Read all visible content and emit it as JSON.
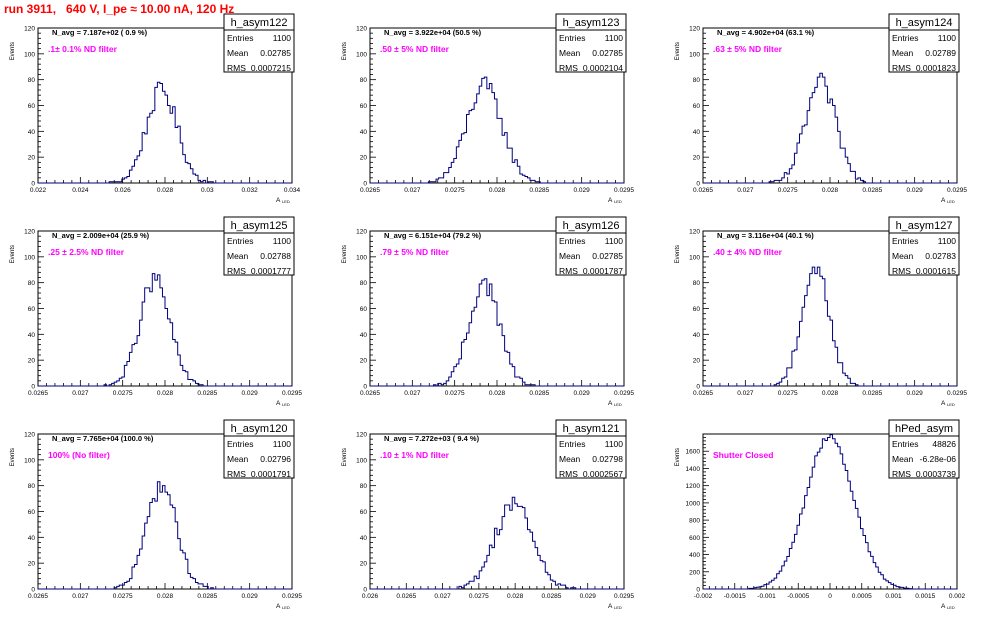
{
  "page": {
    "title": "run 3911,   640 V, I_pe ≈ 10.00 nA, 120 Hz"
  },
  "colors": {
    "histogram": "#00007f",
    "annotation": "#ff00ff",
    "title": "#ff0000",
    "frame": "#000000"
  },
  "chart_data": [
    {
      "type": "bar",
      "name": "h_asym122",
      "avg_label": "N_avg = 7.187e+02 ( 0.9 %)",
      "filter_label": ".1± 0.1% ND filter",
      "stats": {
        "entries_label": "Entries",
        "entries": "1100",
        "mean_label": "Mean",
        "mean": "0.02785",
        "rms_label": "RMS",
        "rms": "0.0007215"
      },
      "ylabel": "Events",
      "xlabel": "A",
      "xlabel_sub": "LED",
      "xlim": [
        0.022,
        0.034
      ],
      "ylim": [
        0,
        120
      ],
      "xticks": [
        0.022,
        0.024,
        0.026,
        0.028,
        0.03,
        0.032,
        0.034
      ],
      "xtick_labels": [
        "0.022",
        "0.024",
        "0.026",
        "0.028",
        "0.03",
        "0.032",
        "0.034"
      ],
      "yticks": [
        0,
        20,
        40,
        60,
        80,
        100,
        120
      ],
      "ytick_labels": [
        "0",
        "20",
        "40",
        "60",
        "80",
        "100",
        "120"
      ],
      "mean": 0.02785,
      "sigma": 0.000722,
      "peak": 72
    },
    {
      "type": "bar",
      "name": "h_asym123",
      "avg_label": "N_avg = 3.922e+04 (50.5 %)",
      "filter_label": ".50 ± 5% ND filter",
      "stats": {
        "entries_label": "Entries",
        "entries": "1100",
        "mean_label": "Mean",
        "mean": "0.02785",
        "rms_label": "RMS",
        "rms": "0.0002104"
      },
      "ylabel": "Events",
      "xlabel": "A",
      "xlabel_sub": "LED",
      "xlim": [
        0.0265,
        0.0295
      ],
      "ylim": [
        0,
        120
      ],
      "xticks": [
        0.0265,
        0.027,
        0.0275,
        0.028,
        0.0285,
        0.029,
        0.0295
      ],
      "xtick_labels": [
        "0.0265",
        "0.027",
        "0.0275",
        "0.028",
        "0.0285",
        "0.029",
        "0.0295"
      ],
      "yticks": [
        0,
        20,
        40,
        60,
        80,
        100,
        120
      ],
      "ytick_labels": [
        "0",
        "20",
        "40",
        "60",
        "80",
        "100",
        "120"
      ],
      "mean": 0.02785,
      "sigma": 0.00021,
      "peak": 75
    },
    {
      "type": "bar",
      "name": "h_asym124",
      "avg_label": "N_avg = 4.902e+04 (63.1 %)",
      "filter_label": ".63 ± 5% ND filter",
      "stats": {
        "entries_label": "Entries",
        "entries": "1100",
        "mean_label": "Mean",
        "mean": "0.02789",
        "rms_label": "RMS",
        "rms": "0.0001823"
      },
      "ylabel": "Events",
      "xlabel": "A",
      "xlabel_sub": "LED",
      "xlim": [
        0.0265,
        0.0295
      ],
      "ylim": [
        0,
        120
      ],
      "xticks": [
        0.0265,
        0.027,
        0.0275,
        0.028,
        0.0285,
        0.029,
        0.0295
      ],
      "xtick_labels": [
        "0.0265",
        "0.027",
        "0.0275",
        "0.028",
        "0.0285",
        "0.029",
        "0.0295"
      ],
      "yticks": [
        0,
        20,
        40,
        60,
        80,
        100,
        120
      ],
      "ytick_labels": [
        "0",
        "20",
        "40",
        "60",
        "80",
        "100",
        "120"
      ],
      "mean": 0.02789,
      "sigma": 0.000182,
      "peak": 77
    },
    {
      "type": "bar",
      "name": "h_asym125",
      "avg_label": "N_avg = 2.009e+04 (25.9 %)",
      "filter_label": ".25 ± 2.5% ND filter",
      "stats": {
        "entries_label": "Entries",
        "entries": "1100",
        "mean_label": "Mean",
        "mean": "0.02788",
        "rms_label": "RMS",
        "rms": "0.0001777"
      },
      "ylabel": "Events",
      "xlabel": "A",
      "xlabel_sub": "LED",
      "xlim": [
        0.0265,
        0.0295
      ],
      "ylim": [
        0,
        120
      ],
      "xticks": [
        0.0265,
        0.027,
        0.0275,
        0.028,
        0.0285,
        0.029,
        0.0295
      ],
      "xtick_labels": [
        "0.0265",
        "0.027",
        "0.0275",
        "0.028",
        "0.0285",
        "0.029",
        "0.0295"
      ],
      "yticks": [
        0,
        20,
        40,
        60,
        80,
        100,
        120
      ],
      "ytick_labels": [
        "0",
        "20",
        "40",
        "60",
        "80",
        "100",
        "120"
      ],
      "mean": 0.02788,
      "sigma": 0.000178,
      "peak": 82
    },
    {
      "type": "bar",
      "name": "h_asym126",
      "avg_label": "N_avg = 6.151e+04 (79.2 %)",
      "filter_label": ".79 ± 5% ND filter",
      "stats": {
        "entries_label": "Entries",
        "entries": "1100",
        "mean_label": "Mean",
        "mean": "0.02785",
        "rms_label": "RMS",
        "rms": "0.0001787"
      },
      "ylabel": "Events",
      "xlabel": "A",
      "xlabel_sub": "LED",
      "xlim": [
        0.0265,
        0.0295
      ],
      "ylim": [
        0,
        120
      ],
      "xticks": [
        0.0265,
        0.027,
        0.0275,
        0.028,
        0.0285,
        0.029,
        0.0295
      ],
      "xtick_labels": [
        "0.0265",
        "0.027",
        "0.0275",
        "0.028",
        "0.0285",
        "0.029",
        "0.0295"
      ],
      "yticks": [
        0,
        20,
        40,
        60,
        80,
        100,
        120
      ],
      "ytick_labels": [
        "0",
        "20",
        "40",
        "60",
        "80",
        "100",
        "120"
      ],
      "mean": 0.02785,
      "sigma": 0.000179,
      "peak": 80
    },
    {
      "type": "bar",
      "name": "h_asym127",
      "avg_label": "N_avg = 3.116e+04 (40.1 %)",
      "filter_label": ".40 ± 4% ND filter",
      "stats": {
        "entries_label": "Entries",
        "entries": "1100",
        "mean_label": "Mean",
        "mean": "0.02783",
        "rms_label": "RMS",
        "rms": "0.0001615"
      },
      "ylabel": "Events",
      "xlabel": "A",
      "xlabel_sub": "LED",
      "xlim": [
        0.0265,
        0.0295
      ],
      "ylim": [
        0,
        120
      ],
      "xticks": [
        0.0265,
        0.027,
        0.0275,
        0.028,
        0.0285,
        0.029,
        0.0295
      ],
      "xtick_labels": [
        "0.0265",
        "0.027",
        "0.0275",
        "0.028",
        "0.0285",
        "0.029",
        "0.0295"
      ],
      "yticks": [
        0,
        20,
        40,
        60,
        80,
        100,
        120
      ],
      "ytick_labels": [
        "0",
        "20",
        "40",
        "60",
        "80",
        "100",
        "120"
      ],
      "mean": 0.02783,
      "sigma": 0.000162,
      "peak": 92
    },
    {
      "type": "bar",
      "name": "h_asym120",
      "avg_label": "N_avg = 7.765e+04 (100.0 %)",
      "filter_label": "100% (No filter)",
      "stats": {
        "entries_label": "Entries",
        "entries": "1100",
        "mean_label": "Mean",
        "mean": "0.02796",
        "rms_label": "RMS",
        "rms": "0.0001791"
      },
      "ylabel": "Events",
      "xlabel": "A",
      "xlabel_sub": "LED",
      "xlim": [
        0.0265,
        0.0295
      ],
      "ylim": [
        0,
        120
      ],
      "xticks": [
        0.0265,
        0.027,
        0.0275,
        0.028,
        0.0285,
        0.029,
        0.0295
      ],
      "xtick_labels": [
        "0.0265",
        "0.027",
        "0.0275",
        "0.028",
        "0.0285",
        "0.029",
        "0.0295"
      ],
      "yticks": [
        0,
        20,
        40,
        60,
        80,
        100,
        120
      ],
      "ytick_labels": [
        "0",
        "20",
        "40",
        "60",
        "80",
        "100",
        "120"
      ],
      "mean": 0.02796,
      "sigma": 0.000179,
      "peak": 80
    },
    {
      "type": "bar",
      "name": "h_asym121",
      "avg_label": "N_avg = 7.272e+03 ( 9.4 %)",
      "filter_label": ".10 ± 1% ND filter",
      "stats": {
        "entries_label": "Entries",
        "entries": "1100",
        "mean_label": "Mean",
        "mean": "0.02798",
        "rms_label": "RMS",
        "rms": "0.0002567"
      },
      "ylabel": "Events",
      "xlabel": "A",
      "xlabel_sub": "LED",
      "xlim": [
        0.026,
        0.0295
      ],
      "ylim": [
        0,
        120
      ],
      "xticks": [
        0.026,
        0.0265,
        0.027,
        0.0275,
        0.028,
        0.0285,
        0.029,
        0.0295
      ],
      "xtick_labels": [
        "0.026",
        "0.0265",
        "0.027",
        "0.0275",
        "0.028",
        "0.0285",
        "0.029",
        "0.0295"
      ],
      "yticks": [
        0,
        20,
        40,
        60,
        80,
        100,
        120
      ],
      "ytick_labels": [
        "0",
        "20",
        "40",
        "60",
        "80",
        "100",
        "120"
      ],
      "mean": 0.02798,
      "sigma": 0.000257,
      "peak": 67
    },
    {
      "type": "bar",
      "name": "hPed_asym",
      "avg_label": "",
      "filter_label": "Shutter Closed",
      "stats": {
        "entries_label": "Entries",
        "entries": "48826",
        "mean_label": "Mean",
        "mean": "-6.28e-06",
        "rms_label": "RMS",
        "rms": "0.0003739"
      },
      "ylabel": "Events",
      "xlabel": "A",
      "xlabel_sub": "LED",
      "xlim": [
        -0.002,
        0.002
      ],
      "ylim": [
        0,
        1800
      ],
      "xticks": [
        -0.002,
        -0.0015,
        -0.001,
        -0.0005,
        0,
        0.0005,
        0.001,
        0.0015,
        0.002
      ],
      "xtick_labels": [
        "-0.002",
        "-0.0015",
        "-0.001",
        "-0.0005",
        "0",
        "0.0005",
        "0.001",
        "0.0015",
        "0.002"
      ],
      "yticks": [
        0,
        200,
        400,
        600,
        800,
        1000,
        1200,
        1400,
        1600
      ],
      "ytick_labels": [
        "0",
        "200",
        "400",
        "600",
        "800",
        "1000",
        "1200",
        "1400",
        "1600"
      ],
      "mean": -6.3e-06,
      "sigma": 0.000374,
      "peak": 1780
    }
  ]
}
